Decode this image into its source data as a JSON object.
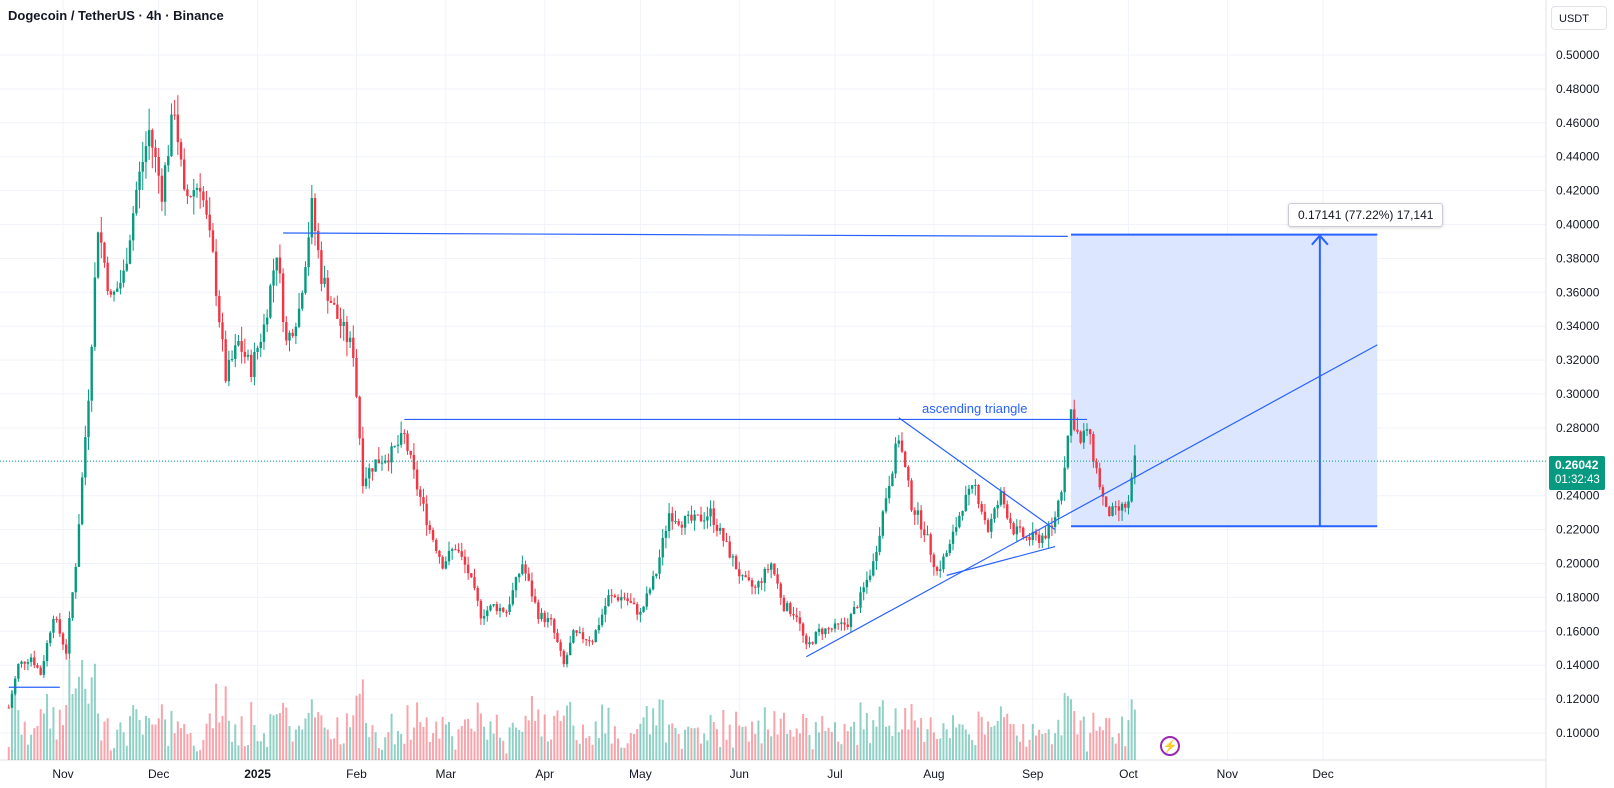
{
  "header": {
    "title": "Dogecoin / TetherUS · 4h · Binance",
    "currency": "USDT"
  },
  "price_tag": {
    "price": "0.26042",
    "countdown": "01:32:43",
    "color": "#089981"
  },
  "annotations": {
    "pattern_label": "ascending triangle",
    "measure_label": "0.17141 (77.22%) 17,141"
  },
  "icons": {
    "flash": "lightning-icon"
  },
  "colors": {
    "up": "#089981",
    "down": "#f23645",
    "drawing": "#2962ff",
    "measure_fill": "#d6e3ff"
  },
  "chart_data": {
    "type": "candlestick",
    "title": "Dogecoin / TetherUS · 4h · Binance",
    "ylim": [
      0.085,
      0.52
    ],
    "y_ticks": [
      "0.50000",
      "0.48000",
      "0.46000",
      "0.44000",
      "0.42000",
      "0.40000",
      "0.38000",
      "0.36000",
      "0.34000",
      "0.32000",
      "0.30000",
      "0.28000",
      "0.26000",
      "0.24000",
      "0.22000",
      "0.20000",
      "0.18000",
      "0.16000",
      "0.14000",
      "0.12000",
      "0.10000"
    ],
    "x_ticks": [
      "Nov",
      "Dec",
      "2025",
      "Feb",
      "Mar",
      "Apr",
      "May",
      "Jun",
      "Jul",
      "Aug",
      "Sep",
      "Oct",
      "Nov",
      "Dec"
    ],
    "x_tick_dates": [
      "2024-11-01",
      "2024-12-01",
      "2025-01-01",
      "2025-02-01",
      "2025-03-01",
      "2025-04-01",
      "2025-05-01",
      "2025-06-01",
      "2025-07-01",
      "2025-08-01",
      "2025-09-01",
      "2025-10-01",
      "2025-11-01",
      "2025-12-01"
    ],
    "last_price": 0.26042,
    "grid": true,
    "price_path": [
      [
        "2024-10-15",
        0.115
      ],
      [
        "2024-10-18",
        0.14
      ],
      [
        "2024-10-22",
        0.145
      ],
      [
        "2024-10-25",
        0.135
      ],
      [
        "2024-10-29",
        0.17
      ],
      [
        "2024-11-02",
        0.148
      ],
      [
        "2024-11-05",
        0.2
      ],
      [
        "2024-11-09",
        0.3
      ],
      [
        "2024-11-12",
        0.4
      ],
      [
        "2024-11-16",
        0.355
      ],
      [
        "2024-11-20",
        0.37
      ],
      [
        "2024-11-24",
        0.42
      ],
      [
        "2024-11-28",
        0.455
      ],
      [
        "2024-12-02",
        0.42
      ],
      [
        "2024-12-06",
        0.47
      ],
      [
        "2024-12-09",
        0.415
      ],
      [
        "2024-12-14",
        0.425
      ],
      [
        "2024-12-18",
        0.38
      ],
      [
        "2024-12-22",
        0.31
      ],
      [
        "2024-12-26",
        0.33
      ],
      [
        "2024-12-30",
        0.315
      ],
      [
        "2025-01-03",
        0.34
      ],
      [
        "2025-01-07",
        0.385
      ],
      [
        "2025-01-10",
        0.33
      ],
      [
        "2025-01-14",
        0.35
      ],
      [
        "2025-01-18",
        0.41
      ],
      [
        "2025-01-21",
        0.37
      ],
      [
        "2025-01-26",
        0.345
      ],
      [
        "2025-01-31",
        0.325
      ],
      [
        "2025-02-03",
        0.25
      ],
      [
        "2025-02-07",
        0.26
      ],
      [
        "2025-02-12",
        0.265
      ],
      [
        "2025-02-16",
        0.275
      ],
      [
        "2025-02-20",
        0.245
      ],
      [
        "2025-02-24",
        0.22
      ],
      [
        "2025-02-28",
        0.2
      ],
      [
        "2025-03-04",
        0.21
      ],
      [
        "2025-03-08",
        0.195
      ],
      [
        "2025-03-12",
        0.17
      ],
      [
        "2025-03-16",
        0.175
      ],
      [
        "2025-03-20",
        0.172
      ],
      [
        "2025-03-25",
        0.2
      ],
      [
        "2025-03-30",
        0.17
      ],
      [
        "2025-04-03",
        0.165
      ],
      [
        "2025-04-07",
        0.14
      ],
      [
        "2025-04-10",
        0.158
      ],
      [
        "2025-04-16",
        0.155
      ],
      [
        "2025-04-21",
        0.18
      ],
      [
        "2025-04-26",
        0.18
      ],
      [
        "2025-05-01",
        0.17
      ],
      [
        "2025-05-06",
        0.195
      ],
      [
        "2025-05-10",
        0.23
      ],
      [
        "2025-05-14",
        0.225
      ],
      [
        "2025-05-18",
        0.225
      ],
      [
        "2025-05-23",
        0.23
      ],
      [
        "2025-05-28",
        0.21
      ],
      [
        "2025-06-02",
        0.19
      ],
      [
        "2025-06-06",
        0.185
      ],
      [
        "2025-06-11",
        0.2
      ],
      [
        "2025-06-15",
        0.175
      ],
      [
        "2025-06-19",
        0.17
      ],
      [
        "2025-06-22",
        0.15
      ],
      [
        "2025-06-26",
        0.16
      ],
      [
        "2025-07-01",
        0.162
      ],
      [
        "2025-07-05",
        0.165
      ],
      [
        "2025-07-09",
        0.18
      ],
      [
        "2025-07-13",
        0.2
      ],
      [
        "2025-07-17",
        0.24
      ],
      [
        "2025-07-21",
        0.275
      ],
      [
        "2025-07-25",
        0.235
      ],
      [
        "2025-07-29",
        0.22
      ],
      [
        "2025-08-02",
        0.195
      ],
      [
        "2025-08-06",
        0.21
      ],
      [
        "2025-08-10",
        0.235
      ],
      [
        "2025-08-14",
        0.245
      ],
      [
        "2025-08-18",
        0.22
      ],
      [
        "2025-08-22",
        0.24
      ],
      [
        "2025-08-26",
        0.22
      ],
      [
        "2025-08-30",
        0.215
      ],
      [
        "2025-09-03",
        0.215
      ],
      [
        "2025-09-07",
        0.22
      ],
      [
        "2025-09-10",
        0.245
      ],
      [
        "2025-09-13",
        0.29
      ],
      [
        "2025-09-16",
        0.27
      ],
      [
        "2025-09-18",
        0.28
      ],
      [
        "2025-09-21",
        0.255
      ],
      [
        "2025-09-24",
        0.23
      ],
      [
        "2025-09-27",
        0.23
      ],
      [
        "2025-10-01",
        0.235
      ],
      [
        "2025-10-03",
        0.26
      ]
    ],
    "drawings": {
      "resistance_upper": {
        "from": [
          "2025-01-09",
          0.395
        ],
        "to": [
          "2025-09-12",
          0.393
        ]
      },
      "triangle_resistance": {
        "from": [
          "2025-02-16",
          0.285
        ],
        "to": [
          "2025-09-18",
          0.285
        ]
      },
      "support_trendline": {
        "from": [
          "2025-06-22",
          0.145
        ],
        "to": [
          "2025-12-18",
          0.329
        ]
      },
      "triangle_upper_leg": {
        "from": [
          "2025-07-21",
          0.286
        ],
        "to": [
          "2025-09-08",
          0.22
        ]
      },
      "triangle_lower_leg": {
        "from": [
          "2025-08-05",
          0.193
        ],
        "to": [
          "2025-09-08",
          0.21
        ]
      },
      "early_level": {
        "from": [
          "2024-10-15",
          0.127
        ],
        "to": [
          "2024-10-31",
          0.127
        ]
      },
      "measure_box": {
        "from": [
          "2025-09-13",
          0.222
        ],
        "to": [
          "2025-12-18",
          0.394
        ],
        "arrow_at": "2025-11-30"
      }
    }
  }
}
